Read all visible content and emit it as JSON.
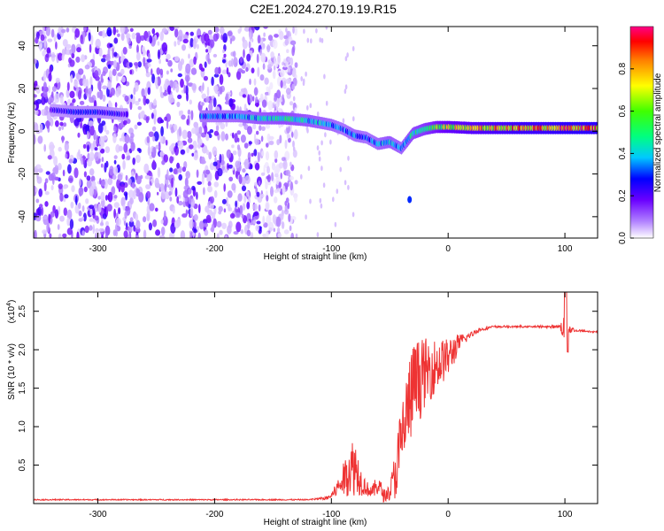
{
  "figure": {
    "title": "C2E1.2024.270.19.19.R15",
    "colors": {
      "spectrogram_low": "#ffffff",
      "spectrogram_mid": "#8000ff",
      "snr_line": "#ee3333",
      "axis": "#000000"
    }
  },
  "chart_data": [
    {
      "type": "heatmap",
      "title": "",
      "xlabel": "Height of straight line (km)",
      "ylabel": "Frequency (Hz)",
      "xlim": [
        -355,
        128
      ],
      "ylim": [
        -50,
        49
      ],
      "xticks": [
        -300,
        -200,
        -100,
        0,
        100
      ],
      "yticks": [
        -40,
        -20,
        0,
        20,
        40
      ],
      "colorbar": {
        "label": "Normalized spectral amplitude",
        "range": [
          0,
          1
        ],
        "ticks": [
          0.0,
          0.2,
          0.4,
          0.6,
          0.8
        ],
        "tick_labels": [
          "0.0",
          "0.2",
          "0.4",
          "0.6",
          "0.8"
        ],
        "colormap": "rainbow (white-violet-blue-cyan-green-yellow-red)"
      },
      "ridge": {
        "description": "peak frequency track versus height",
        "x": [
          -340,
          -320,
          -300,
          -280,
          -210,
          -180,
          -160,
          -140,
          -120,
          -100,
          -90,
          -80,
          -70,
          -60,
          -50,
          -40,
          -30,
          -20,
          -10,
          0,
          20,
          40,
          60,
          80,
          100,
          125
        ],
        "y": [
          10,
          9,
          9,
          8,
          7,
          7,
          6,
          6,
          5,
          3,
          1,
          -2,
          -3,
          -6,
          -5,
          -8,
          -1,
          1,
          2,
          2,
          1.5,
          1.5,
          1.5,
          1.5,
          1.5,
          1.5
        ],
        "amplitude": [
          0.25,
          0.3,
          0.3,
          0.25,
          0.35,
          0.4,
          0.45,
          0.5,
          0.45,
          0.4,
          0.35,
          0.4,
          0.35,
          0.4,
          0.45,
          0.4,
          0.5,
          0.55,
          0.65,
          0.75,
          0.8,
          0.85,
          0.9,
          0.9,
          0.95,
          0.95
        ]
      },
      "noise_region": {
        "x_start": -355,
        "x_end": -140
      }
    },
    {
      "type": "line",
      "title": "",
      "xlabel": "Height of straight line (km)",
      "ylabel": "SNR (10 * v/v)",
      "yscale_label": "(x10",
      "yscale_exp": "4",
      "xlim": [
        -355,
        128
      ],
      "ylim": [
        0,
        2.75
      ],
      "xticks": [
        -300,
        -200,
        -100,
        0,
        100
      ],
      "yticks": [
        0.5,
        1.0,
        1.5,
        2.0,
        2.5
      ],
      "ytick_labels": [
        "0.5",
        "1.0",
        "1.5",
        "2.0",
        "2.5"
      ],
      "series": [
        {
          "name": "",
          "x": [
            -355,
            -300,
            -200,
            -120,
            -105,
            -100,
            -95,
            -90,
            -85,
            -80,
            -75,
            -70,
            -65,
            -60,
            -55,
            -50,
            -45,
            -40,
            -35,
            -30,
            -25,
            -20,
            -15,
            -10,
            -5,
            0,
            5,
            10,
            15,
            20,
            25,
            30,
            35,
            40,
            50,
            60,
            80,
            95,
            100,
            105,
            110,
            120,
            128
          ],
          "y": [
            0.05,
            0.05,
            0.05,
            0.05,
            0.07,
            0.1,
            0.2,
            0.3,
            0.45,
            0.5,
            0.3,
            0.2,
            0.15,
            0.25,
            0.1,
            0.15,
            0.4,
            0.8,
            1.2,
            1.5,
            1.6,
            1.7,
            1.75,
            1.8,
            1.85,
            1.9,
            2.0,
            2.1,
            2.15,
            2.2,
            2.25,
            2.27,
            2.29,
            2.3,
            2.3,
            2.3,
            2.3,
            2.3,
            2.28,
            2.26,
            2.25,
            2.24,
            2.23
          ],
          "noise_amplitude": [
            0.0,
            0.0,
            0.0,
            0.0,
            0.02,
            0.05,
            0.1,
            0.2,
            0.35,
            0.4,
            0.2,
            0.1,
            0.08,
            0.15,
            0.08,
            0.1,
            0.35,
            0.55,
            0.6,
            0.6,
            0.55,
            0.45,
            0.4,
            0.35,
            0.3,
            0.25,
            0.2,
            0.1,
            0.06,
            0.04,
            0.03,
            0.02,
            0.02,
            0.01,
            0.01,
            0.01,
            0.01,
            0.02,
            0.2,
            0.05,
            0.01,
            0.01,
            0.01
          ]
        }
      ]
    }
  ]
}
